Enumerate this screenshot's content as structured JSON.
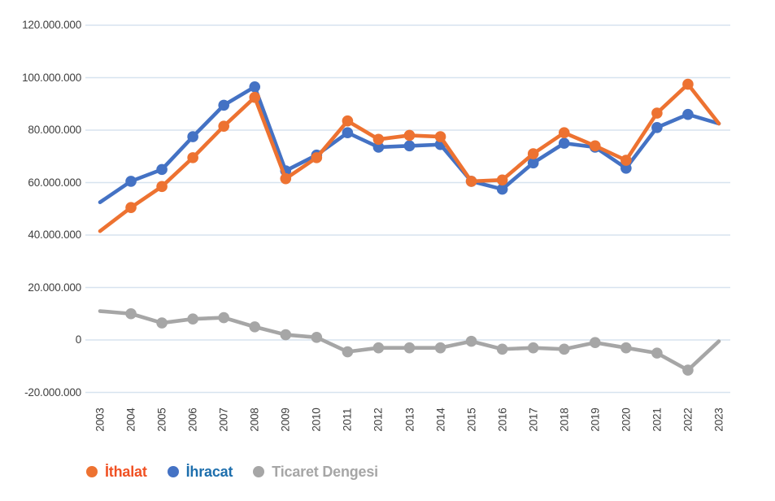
{
  "chart_data": {
    "type": "line",
    "title": "",
    "xlabel": "",
    "ylabel": "",
    "grid": true,
    "legend_position": "bottom",
    "background_color": "#FFFFFF",
    "grid_color": "#D7E3EF",
    "axis_text_color": "#404040",
    "x": [
      "2003",
      "2004",
      "2005",
      "2006",
      "2007",
      "2008",
      "2009",
      "2010",
      "2011",
      "2012",
      "2013",
      "2014",
      "2015",
      "2016",
      "2017",
      "2018",
      "2019",
      "2020",
      "2021",
      "2022",
      "2023"
    ],
    "series": [
      {
        "name": "İthalat",
        "color": "#ED7231",
        "legend_text_color": "#F05123",
        "values": [
          41500000,
          50500000,
          58500000,
          69500000,
          81500000,
          92500000,
          61500000,
          69500000,
          83500000,
          76500000,
          78000000,
          77500000,
          60500000,
          61000000,
          71000000,
          79000000,
          74000000,
          68500000,
          86500000,
          97500000,
          82500000
        ]
      },
      {
        "name": "İhracat",
        "color": "#4472C4",
        "legend_text_color": "#1E6FAD",
        "values": [
          52500000,
          60500000,
          65000000,
          77500000,
          89500000,
          96500000,
          64500000,
          70500000,
          79000000,
          73500000,
          74000000,
          74500000,
          60500000,
          57500000,
          67500000,
          75000000,
          73500000,
          65500000,
          81000000,
          86000000,
          82500000
        ]
      },
      {
        "name": "Ticaret Dengesi",
        "color": "#A6A6A6",
        "legend_text_color": "#A6A6A6",
        "values": [
          11000000,
          10000000,
          6500000,
          8000000,
          8500000,
          5000000,
          2000000,
          1000000,
          -4500000,
          -3000000,
          -3000000,
          -3000000,
          -500000,
          -3500000,
          -3000000,
          -3500000,
          -1000000,
          -3000000,
          -5000000,
          -11500000,
          -500000
        ]
      }
    ],
    "y_ticks": [
      {
        "label": "120.000.000",
        "value": 120000000
      },
      {
        "label": "100.000.000",
        "value": 100000000
      },
      {
        "label": "80.000.000",
        "value": 80000000
      },
      {
        "label": "60.000.000",
        "value": 60000000
      },
      {
        "label": "40.000.000",
        "value": 40000000
      },
      {
        "label": "20.000.000",
        "value": 20000000
      },
      {
        "label": "0",
        "value": 0
      },
      {
        "label": "-20.000.000",
        "value": -20000000
      }
    ],
    "ylim": [
      -20000000,
      120000000
    ]
  }
}
